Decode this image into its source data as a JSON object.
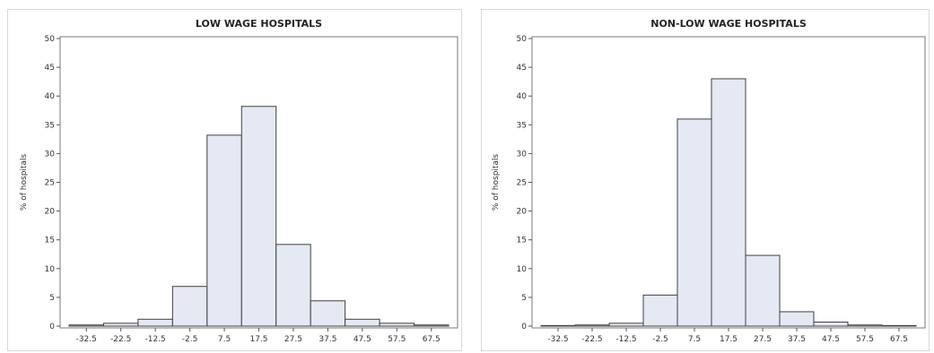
{
  "chart_data": [
    {
      "type": "bar",
      "title": "LOW WAGE HOSPITALS",
      "ylabel": "% of hospitals",
      "xlabel": "",
      "ylim": [
        0,
        50
      ],
      "yticks": [
        "0",
        "5",
        "10",
        "15",
        "20",
        "25",
        "30",
        "35",
        "40",
        "45",
        "50"
      ],
      "categories": [
        "-32.5",
        "-22.5",
        "-12.5",
        "-2.5",
        "7.5",
        "17.5",
        "27.5",
        "37.5",
        "47.5",
        "57.5",
        "67.5"
      ],
      "values": [
        0.2,
        0.5,
        1.2,
        6.9,
        33.2,
        38.2,
        14.2,
        4.4,
        1.2,
        0.5,
        0.2
      ]
    },
    {
      "type": "bar",
      "title": "NON-LOW WAGE HOSPITALS",
      "ylabel": "% of hospitals",
      "xlabel": "",
      "ylim": [
        0,
        50
      ],
      "yticks": [
        "0",
        "5",
        "10",
        "15",
        "20",
        "25",
        "30",
        "35",
        "40",
        "45",
        "50"
      ],
      "categories": [
        "-32.5",
        "-22.5",
        "-12.5",
        "-2.5",
        "7.5",
        "17.5",
        "27.5",
        "37.5",
        "47.5",
        "57.5",
        "67.5"
      ],
      "values": [
        0.1,
        0.2,
        0.5,
        5.4,
        36.0,
        43.0,
        12.3,
        2.5,
        0.7,
        0.2,
        0.1
      ]
    }
  ]
}
